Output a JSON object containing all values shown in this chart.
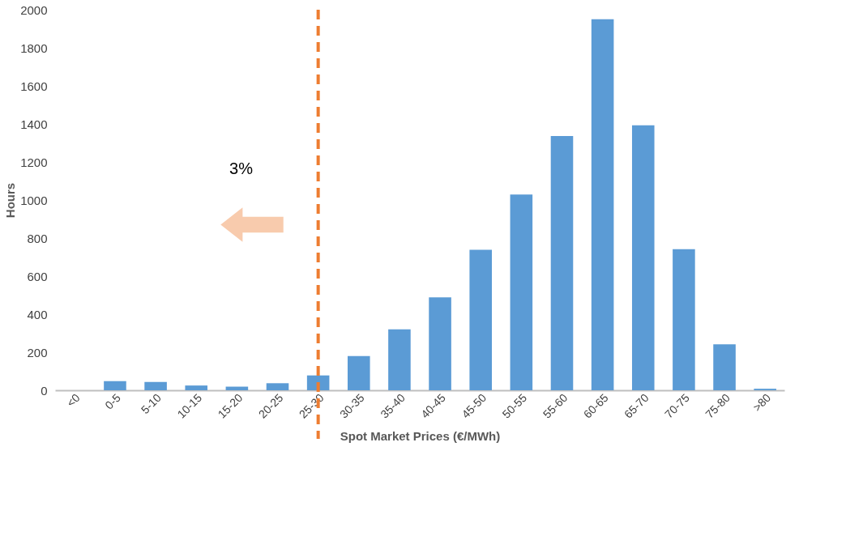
{
  "chart_data": {
    "type": "bar",
    "xlabel": "Spot Market Prices (€/MWh)",
    "ylabel": "Hours",
    "categories": [
      "<0",
      "0-5",
      "5-10",
      "10-15",
      "15-20",
      "20-25",
      "25-30",
      "30-35",
      "35-40",
      "40-45",
      "45-50",
      "50-55",
      "55-60",
      "60-65",
      "65-70",
      "70-75",
      "75-80",
      ">80"
    ],
    "values": [
      0,
      48,
      44,
      25,
      19,
      37,
      78,
      180,
      320,
      488,
      738,
      1029,
      1336,
      1950,
      1393,
      742,
      242,
      8
    ],
    "color": "#5b9bd5",
    "ylim": [
      0,
      2000
    ],
    "yticks": [
      0,
      200,
      400,
      600,
      800,
      1000,
      1200,
      1400,
      1600,
      1800,
      2000
    ],
    "grid": false,
    "ref_lines": [
      {
        "axis": "x",
        "value": "25-30",
        "label": null,
        "color": "#ed7d31",
        "line_style": "dashed"
      }
    ],
    "annotations": [
      "3%"
    ]
  }
}
